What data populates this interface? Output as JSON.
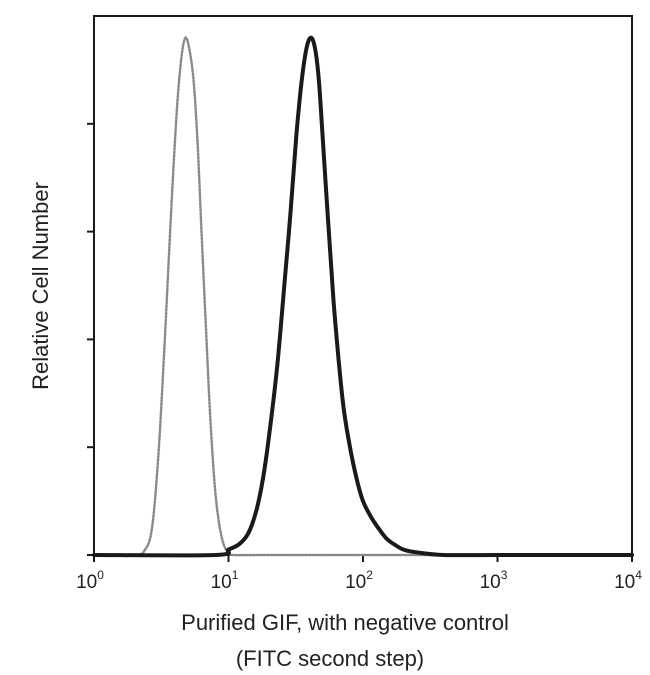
{
  "chart_data": {
    "type": "line",
    "title": "",
    "xlabel_line1": "Purified GIF, with negative control",
    "xlabel_line2": "(FITC second step)",
    "ylabel": "Relative Cell Number",
    "x_scale": "log",
    "xlim": [
      1,
      10000
    ],
    "ylim": [
      0,
      1
    ],
    "grid": false,
    "legend": "none",
    "x_ticks": [
      {
        "base": "10",
        "exp": "0",
        "value": 1
      },
      {
        "base": "10",
        "exp": "1",
        "value": 10
      },
      {
        "base": "10",
        "exp": "2",
        "value": 100
      },
      {
        "base": "10",
        "exp": "3",
        "value": 1000
      },
      {
        "base": "10",
        "exp": "4",
        "value": 10000
      }
    ],
    "y_ticks": [
      0,
      0.2,
      0.4,
      0.6,
      0.8
    ],
    "series": [
      {
        "style": "dotted",
        "color": "#8a8a8a",
        "x": [
          1,
          2.0,
          2.4,
          2.7,
          3.0,
          3.3,
          3.6,
          3.9,
          4.2,
          4.5,
          4.8,
          5.1,
          5.5,
          5.9,
          6.3,
          6.8,
          7.3,
          7.9,
          8.5,
          9.2,
          10,
          11,
          20,
          100,
          1000,
          10000
        ],
        "y": [
          0.0,
          0.0,
          0.01,
          0.05,
          0.18,
          0.36,
          0.55,
          0.72,
          0.85,
          0.93,
          0.96,
          0.94,
          0.88,
          0.76,
          0.6,
          0.42,
          0.26,
          0.13,
          0.06,
          0.02,
          0.005,
          0.0,
          0.0,
          0.0,
          0.0,
          0.0
        ]
      },
      {
        "style": "solid",
        "color": "#1a1a1a",
        "x": [
          1,
          8,
          10,
          12,
          14,
          16,
          18,
          20,
          23,
          26,
          29,
          32,
          35,
          38,
          41,
          44,
          47,
          50,
          55,
          60,
          66,
          72,
          80,
          90,
          100,
          115,
          130,
          150,
          170,
          200,
          250,
          400,
          1000,
          10000
        ],
        "y": [
          0.0,
          0.0,
          0.01,
          0.02,
          0.04,
          0.08,
          0.14,
          0.22,
          0.35,
          0.5,
          0.64,
          0.78,
          0.88,
          0.94,
          0.96,
          0.94,
          0.88,
          0.78,
          0.62,
          0.48,
          0.36,
          0.27,
          0.2,
          0.14,
          0.1,
          0.07,
          0.05,
          0.03,
          0.02,
          0.01,
          0.005,
          0.0,
          0.0,
          0.0
        ]
      }
    ]
  }
}
